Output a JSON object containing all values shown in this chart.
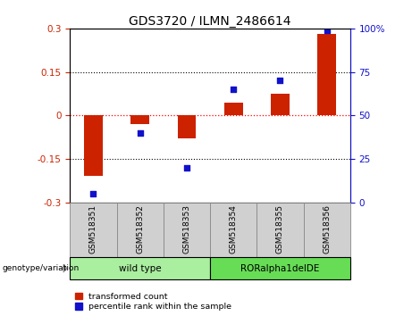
{
  "title": "GDS3720 / ILMN_2486614",
  "categories": [
    "GSM518351",
    "GSM518352",
    "GSM518353",
    "GSM518354",
    "GSM518355",
    "GSM518356"
  ],
  "red_values": [
    -0.21,
    -0.03,
    -0.08,
    0.045,
    0.075,
    0.28
  ],
  "blue_percentiles": [
    5,
    40,
    20,
    65,
    70,
    99
  ],
  "ylim": [
    -0.3,
    0.3
  ],
  "yticks_left": [
    -0.3,
    -0.15,
    0,
    0.15,
    0.3
  ],
  "yticks_right": [
    0,
    25,
    50,
    75,
    100
  ],
  "right_ylim": [
    0,
    100
  ],
  "red_color": "#cc2200",
  "blue_color": "#1111cc",
  "bar_width": 0.4,
  "genotype_labels": [
    "wild type",
    "RORalpha1delDE"
  ],
  "genotype_ranges": [
    [
      0,
      3
    ],
    [
      3,
      6
    ]
  ],
  "genotype_colors_light": [
    "#aaeea0",
    "#66dd55"
  ],
  "legend_labels": [
    "transformed count",
    "percentile rank within the sample"
  ],
  "title_fontsize": 10,
  "tick_fontsize": 7.5,
  "label_box_color": "#d0d0d0",
  "label_box_edge": "#888888"
}
